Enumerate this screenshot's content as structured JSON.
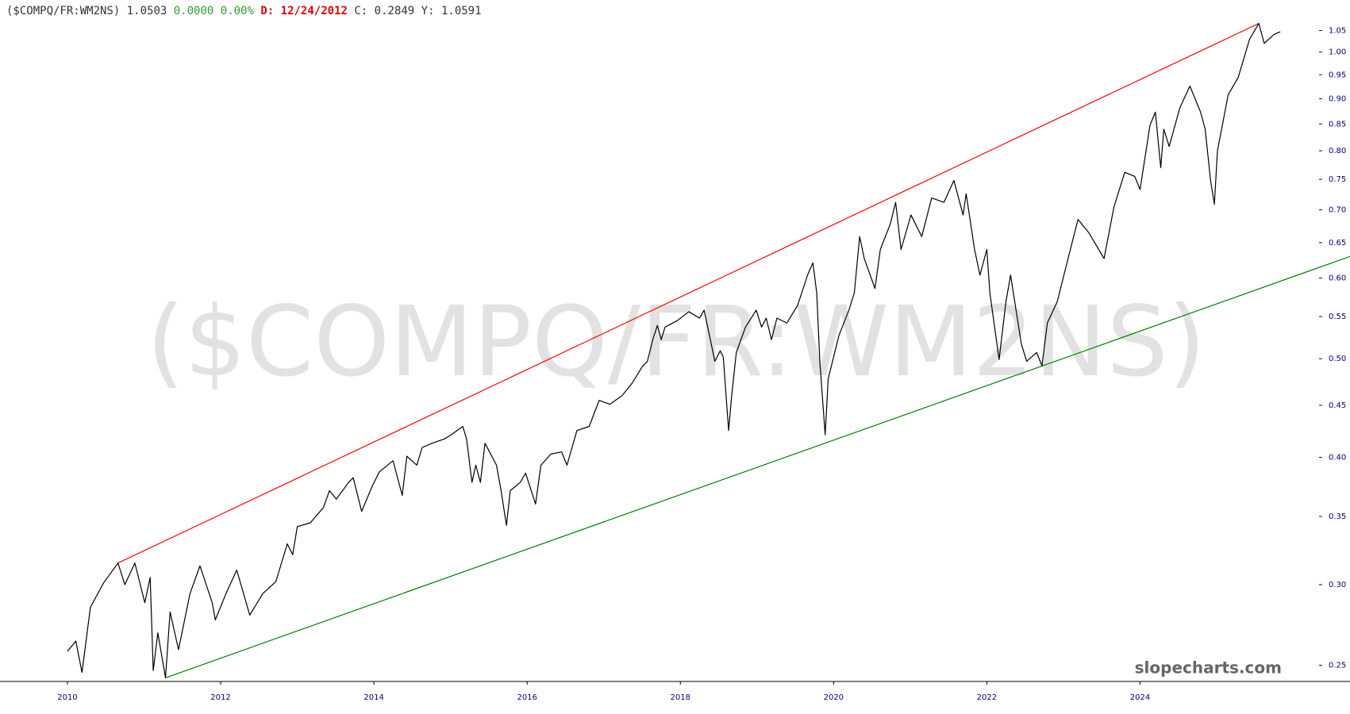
{
  "chart_data": {
    "type": "line",
    "header": {
      "symbol": "($COMPQ/FR:WM2NS)",
      "last": "1.0503",
      "change": "0.0000",
      "change_pct": "0.00%",
      "date": "D: 12/24/2012",
      "close": "C: 0.2849",
      "y_value": "Y: 1.0591"
    },
    "watermark": "($COMPQ/FR:WM2NS)",
    "brand": "slopecharts.com",
    "log_scale": true,
    "xlim": [
      2009.12,
      2026.74
    ],
    "xticks": [
      2010,
      2012,
      2014,
      2016,
      2018,
      2020,
      2022,
      2024
    ],
    "ylim": [
      0.241,
      1.125
    ],
    "yticks": [
      0.25,
      {
        "value": 0.3,
        "label": "0.30"
      },
      0.35,
      {
        "value": 0.4,
        "label": "0.40"
      },
      0.45,
      {
        "value": 0.5,
        "label": "0.50"
      },
      0.55,
      {
        "value": 0.6,
        "label": "0.60"
      },
      0.65,
      {
        "value": 0.7,
        "label": "0.70"
      },
      0.75,
      {
        "value": 0.8,
        "label": "0.80"
      },
      0.85,
      {
        "value": 0.9,
        "label": "0.90"
      },
      0.95,
      {
        "value": 1.0,
        "label": "1.00"
      },
      1.05
    ],
    "series": [
      {
        "color": "#000000",
        "x": [
          2010.0,
          2010.11,
          2010.19,
          2010.3,
          2010.47,
          2010.66,
          2010.75,
          2010.88,
          2011.01,
          2011.08,
          2011.12,
          2011.18,
          2011.28,
          2011.34,
          2011.45,
          2011.6,
          2011.73,
          2011.89,
          2011.93,
          2012.07,
          2012.21,
          2012.38,
          2012.55,
          2012.72,
          2012.87,
          2012.94,
          2013.0,
          2013.17,
          2013.34,
          2013.42,
          2013.51,
          2013.67,
          2013.73,
          2013.84,
          2013.98,
          2014.07,
          2014.25,
          2014.37,
          2014.43,
          2014.56,
          2014.63,
          2014.76,
          2014.92,
          2015.01,
          2015.16,
          2015.21,
          2015.28,
          2015.33,
          2015.39,
          2015.45,
          2015.6,
          2015.66,
          2015.73,
          2015.78,
          2015.91,
          2015.98,
          2016.11,
          2016.18,
          2016.31,
          2016.45,
          2016.52,
          2016.65,
          2016.81,
          2016.94,
          2017.08,
          2017.24,
          2017.37,
          2017.51,
          2017.57,
          2017.64,
          2017.7,
          2017.75,
          2017.8,
          2017.96,
          2018.11,
          2018.25,
          2018.31,
          2018.38,
          2018.45,
          2018.52,
          2018.56,
          2018.63,
          2018.67,
          2018.73,
          2018.85,
          2018.99,
          2019.06,
          2019.12,
          2019.19,
          2019.26,
          2019.39,
          2019.53,
          2019.66,
          2019.73,
          2019.78,
          2019.82,
          2019.89,
          2019.93,
          2020.07,
          2020.2,
          2020.27,
          2020.34,
          2020.4,
          2020.54,
          2020.61,
          2020.74,
          2020.81,
          2020.88,
          2021.01,
          2021.15,
          2021.28,
          2021.44,
          2021.57,
          2021.69,
          2021.73,
          2021.84,
          2021.91,
          2022.0,
          2022.04,
          2022.16,
          2022.25,
          2022.31,
          2022.45,
          2022.52,
          2022.65,
          2022.72,
          2022.79,
          2022.92,
          2023.06,
          2023.19,
          2023.33,
          2023.46,
          2023.53,
          2023.66,
          2023.8,
          2023.93,
          2024.0,
          2024.13,
          2024.2,
          2024.27,
          2024.31,
          2024.38,
          2024.52,
          2024.65,
          2024.79,
          2024.85,
          2024.92,
          2024.97,
          2025.01,
          2025.15,
          2025.28,
          2025.43,
          2025.55,
          2025.62,
          2025.75,
          2025.83
        ],
        "values": [
          0.258,
          0.264,
          0.246,
          0.285,
          0.301,
          0.315,
          0.3,
          0.315,
          0.288,
          0.305,
          0.247,
          0.269,
          0.243,
          0.282,
          0.259,
          0.294,
          0.313,
          0.288,
          0.277,
          0.294,
          0.31,
          0.28,
          0.294,
          0.302,
          0.329,
          0.321,
          0.342,
          0.345,
          0.357,
          0.371,
          0.364,
          0.378,
          0.382,
          0.354,
          0.375,
          0.387,
          0.397,
          0.367,
          0.401,
          0.393,
          0.409,
          0.413,
          0.417,
          0.421,
          0.429,
          0.417,
          0.378,
          0.393,
          0.378,
          0.413,
          0.393,
          0.371,
          0.343,
          0.371,
          0.378,
          0.386,
          0.36,
          0.393,
          0.403,
          0.405,
          0.393,
          0.425,
          0.429,
          0.455,
          0.451,
          0.46,
          0.473,
          0.492,
          0.497,
          0.522,
          0.539,
          0.522,
          0.537,
          0.545,
          0.556,
          0.548,
          0.558,
          0.527,
          0.497,
          0.509,
          0.502,
          0.425,
          0.46,
          0.507,
          0.537,
          0.558,
          0.537,
          0.548,
          0.522,
          0.548,
          0.542,
          0.564,
          0.604,
          0.621,
          0.58,
          0.497,
          0.421,
          0.478,
          0.527,
          0.558,
          0.58,
          0.659,
          0.627,
          0.586,
          0.64,
          0.678,
          0.712,
          0.64,
          0.692,
          0.659,
          0.719,
          0.712,
          0.748,
          0.692,
          0.726,
          0.64,
          0.604,
          0.64,
          0.58,
          0.499,
          0.569,
          0.604,
          0.517,
          0.497,
          0.507,
          0.492,
          0.542,
          0.569,
          0.627,
          0.685,
          0.665,
          0.64,
          0.627,
          0.705,
          0.762,
          0.755,
          0.733,
          0.848,
          0.873,
          0.77,
          0.84,
          0.808,
          0.882,
          0.926,
          0.873,
          0.84,
          0.748,
          0.709,
          0.8,
          0.908,
          0.944,
          1.03,
          1.067,
          1.02,
          1.041,
          1.047
        ]
      }
    ],
    "trendlines": [
      {
        "color": "#ff0000",
        "x": [
          2010.66,
          2025.55
        ],
        "values": [
          0.315,
          1.067
        ]
      },
      {
        "color": "#008000",
        "x": [
          2011.28,
          2026.74
        ],
        "values": [
          0.243,
          0.63
        ]
      }
    ]
  }
}
